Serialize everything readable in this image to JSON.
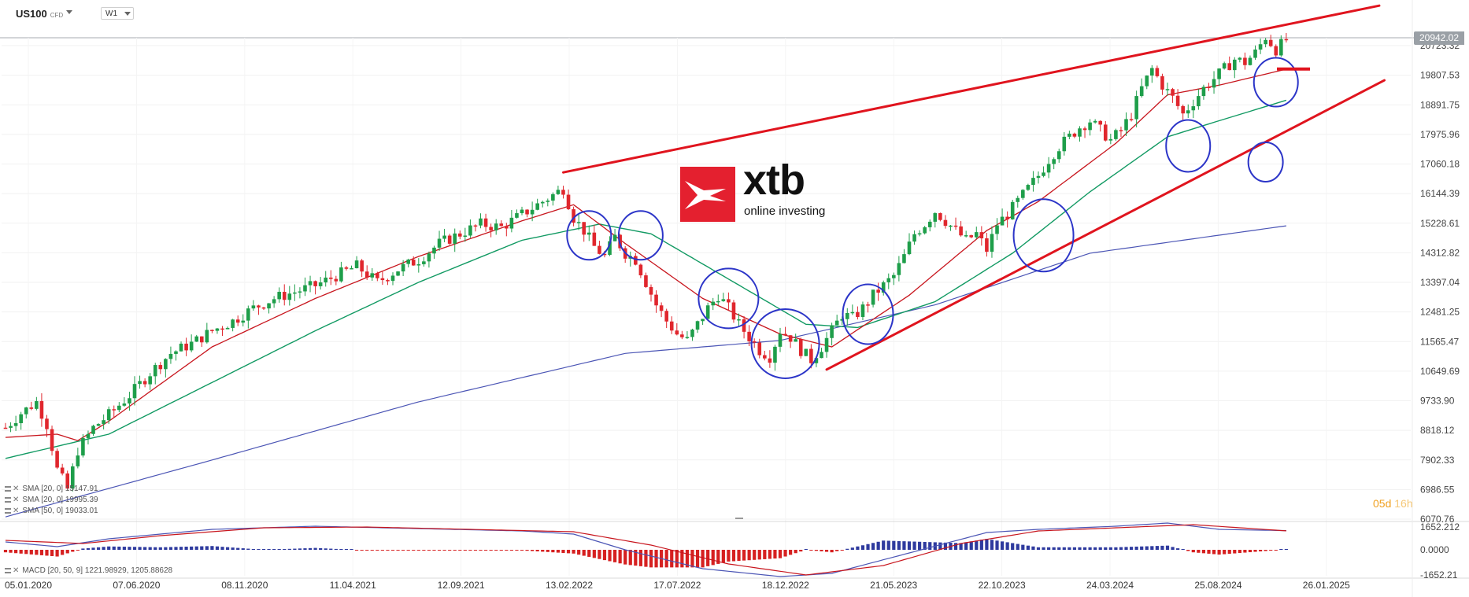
{
  "header": {
    "symbol": "US100",
    "symbol_type": "CFD",
    "timeframe": "W1"
  },
  "logo": {
    "brand": "xtb",
    "tagline": "online investing"
  },
  "current_price": "20942.02",
  "countdown": {
    "days": "05d",
    "hours": "16h"
  },
  "price_axis": [
    "20723.32",
    "19807.53",
    "18891.75",
    "17975.96",
    "17060.18",
    "16144.39",
    "15228.61",
    "14312.82",
    "13397.04",
    "12481.25",
    "11565.47",
    "10649.69",
    "9733.90",
    "8818.12",
    "7902.33",
    "6986.55",
    "6070.76"
  ],
  "macd_axis": [
    "1652.212",
    "0.0000",
    "-1652.21"
  ],
  "date_axis": [
    "05.01.2020",
    "07.06.2020",
    "08.11.2020",
    "11.04.2021",
    "12.09.2021",
    "13.02.2022",
    "17.07.2022",
    "18.12.2022",
    "21.05.2023",
    "22.10.2023",
    "24.03.2024",
    "25.08.2024",
    "26.01.2025"
  ],
  "legends": [
    {
      "text": "SMA  [20, 0]  15147.91"
    },
    {
      "text": "SMA  [20, 0]  19995.39"
    },
    {
      "text": "SMA  [50, 0]  19033.01"
    },
    {
      "text": "MACD  [20, 50, 9]  1221.98929,  1205.88628"
    }
  ],
  "colors": {
    "bull": "#1e9e4a",
    "bear": "#e0262d",
    "sma_fast": "#c8161e",
    "sma_mid": "#129a63",
    "sma_slow": "#4b55b5",
    "trend": "#e0141e",
    "circle": "#2c35c8",
    "macd_hist_pos": "#2e3a9e",
    "macd_hist_neg": "#d62020"
  },
  "chart_data": {
    "type": "candlestick",
    "symbol": "US100",
    "interval": "W1",
    "ylim": [
      6070.76,
      20723.32
    ],
    "x_ticks": [
      "05.01.2020",
      "07.06.2020",
      "08.11.2020",
      "11.04.2021",
      "12.09.2021",
      "13.02.2022",
      "17.07.2022",
      "18.12.2022",
      "21.05.2023",
      "22.10.2023",
      "24.03.2024",
      "25.08.2024",
      "26.01.2025"
    ],
    "close_path": [
      [
        0,
        8900
      ],
      [
        3,
        9350
      ],
      [
        6,
        9700
      ],
      [
        8,
        9000
      ],
      [
        10,
        7600
      ],
      [
        12,
        7000
      ],
      [
        14,
        8200
      ],
      [
        17,
        8900
      ],
      [
        20,
        9300
      ],
      [
        24,
        9900
      ],
      [
        28,
        10600
      ],
      [
        32,
        11200
      ],
      [
        36,
        11500
      ],
      [
        40,
        11900
      ],
      [
        44,
        12200
      ],
      [
        48,
        12600
      ],
      [
        52,
        12900
      ],
      [
        56,
        13100
      ],
      [
        60,
        13300
      ],
      [
        64,
        13600
      ],
      [
        68,
        13900
      ],
      [
        72,
        13400
      ],
      [
        76,
        13800
      ],
      [
        80,
        14100
      ],
      [
        84,
        14600
      ],
      [
        88,
        14900
      ],
      [
        92,
        15200
      ],
      [
        96,
        15100
      ],
      [
        100,
        15500
      ],
      [
        104,
        15900
      ],
      [
        108,
        16300
      ],
      [
        110,
        15400
      ],
      [
        112,
        15000
      ],
      [
        114,
        14500
      ],
      [
        116,
        14200
      ],
      [
        118,
        14800
      ],
      [
        120,
        14300
      ],
      [
        122,
        14100
      ],
      [
        124,
        13400
      ],
      [
        126,
        12700
      ],
      [
        128,
        12200
      ],
      [
        130,
        11800
      ],
      [
        132,
        11600
      ],
      [
        134,
        12100
      ],
      [
        136,
        12600
      ],
      [
        138,
        13000
      ],
      [
        140,
        12600
      ],
      [
        142,
        12100
      ],
      [
        144,
        11700
      ],
      [
        146,
        11300
      ],
      [
        148,
        11100
      ],
      [
        150,
        11900
      ],
      [
        152,
        11700
      ],
      [
        154,
        11300
      ],
      [
        156,
        11000
      ],
      [
        158,
        11400
      ],
      [
        160,
        11900
      ],
      [
        162,
        12400
      ],
      [
        164,
        12300
      ],
      [
        166,
        12600
      ],
      [
        168,
        13000
      ],
      [
        170,
        13300
      ],
      [
        172,
        13600
      ],
      [
        174,
        14200
      ],
      [
        176,
        14900
      ],
      [
        178,
        15200
      ],
      [
        180,
        15600
      ],
      [
        182,
        15300
      ],
      [
        184,
        15000
      ],
      [
        186,
        14700
      ],
      [
        188,
        14900
      ],
      [
        190,
        14400
      ],
      [
        192,
        15200
      ],
      [
        194,
        15500
      ],
      [
        196,
        15900
      ],
      [
        198,
        16300
      ],
      [
        200,
        16700
      ],
      [
        202,
        17200
      ],
      [
        204,
        17600
      ],
      [
        206,
        17900
      ],
      [
        208,
        18200
      ],
      [
        210,
        18400
      ],
      [
        212,
        18100
      ],
      [
        214,
        17800
      ],
      [
        216,
        18100
      ],
      [
        218,
        18600
      ],
      [
        220,
        19400
      ],
      [
        222,
        20000
      ],
      [
        224,
        19500
      ],
      [
        226,
        19100
      ],
      [
        228,
        18600
      ],
      [
        230,
        19000
      ],
      [
        232,
        19400
      ],
      [
        234,
        19700
      ],
      [
        236,
        20000
      ],
      [
        238,
        20300
      ],
      [
        240,
        20200
      ],
      [
        242,
        20500
      ],
      [
        244,
        21000
      ],
      [
        246,
        20600
      ],
      [
        248,
        20900
      ]
    ],
    "sma_slow_path": [
      [
        0,
        6140
      ],
      [
        40,
        7900
      ],
      [
        80,
        9700
      ],
      [
        120,
        11200
      ],
      [
        150,
        11600
      ],
      [
        180,
        12700
      ],
      [
        210,
        14300
      ],
      [
        248,
        15147.91
      ]
    ],
    "sma_mid_path": [
      [
        0,
        7950
      ],
      [
        20,
        8700
      ],
      [
        40,
        10300
      ],
      [
        60,
        11900
      ],
      [
        80,
        13400
      ],
      [
        100,
        14700
      ],
      [
        115,
        15200
      ],
      [
        125,
        14900
      ],
      [
        140,
        13500
      ],
      [
        155,
        12100
      ],
      [
        165,
        12000
      ],
      [
        180,
        12800
      ],
      [
        195,
        14300
      ],
      [
        210,
        16200
      ],
      [
        225,
        17900
      ],
      [
        235,
        18400
      ],
      [
        248,
        19033.01
      ]
    ],
    "sma_fast_path": [
      [
        0,
        8600
      ],
      [
        10,
        8700
      ],
      [
        14,
        8500
      ],
      [
        20,
        9100
      ],
      [
        40,
        11400
      ],
      [
        60,
        12900
      ],
      [
        80,
        14200
      ],
      [
        100,
        15300
      ],
      [
        110,
        15800
      ],
      [
        120,
        14600
      ],
      [
        135,
        12900
      ],
      [
        150,
        11800
      ],
      [
        160,
        11400
      ],
      [
        175,
        13000
      ],
      [
        190,
        15000
      ],
      [
        200,
        15900
      ],
      [
        215,
        17700
      ],
      [
        225,
        19200
      ],
      [
        235,
        19500
      ],
      [
        248,
        19995.39
      ]
    ],
    "macd": {
      "ylim": [
        -1652.21,
        1652.212
      ],
      "macd_path": [
        [
          0,
          500
        ],
        [
          10,
          200
        ],
        [
          20,
          700
        ],
        [
          40,
          1300
        ],
        [
          60,
          1500
        ],
        [
          80,
          1350
        ],
        [
          100,
          1200
        ],
        [
          110,
          1000
        ],
        [
          120,
          0
        ],
        [
          135,
          -1200
        ],
        [
          150,
          -1700
        ],
        [
          160,
          -1500
        ],
        [
          175,
          -200
        ],
        [
          190,
          1100
        ],
        [
          200,
          1300
        ],
        [
          215,
          1500
        ],
        [
          225,
          1700
        ],
        [
          235,
          1300
        ],
        [
          248,
          1221.98929
        ]
      ],
      "signal_path": [
        [
          0,
          600
        ],
        [
          15,
          400
        ],
        [
          30,
          900
        ],
        [
          50,
          1400
        ],
        [
          70,
          1450
        ],
        [
          90,
          1300
        ],
        [
          110,
          1150
        ],
        [
          125,
          300
        ],
        [
          140,
          -900
        ],
        [
          155,
          -1600
        ],
        [
          170,
          -1000
        ],
        [
          185,
          400
        ],
        [
          200,
          1200
        ],
        [
          215,
          1400
        ],
        [
          230,
          1600
        ],
        [
          248,
          1205.88628
        ]
      ]
    },
    "trendlines": [
      {
        "from": [
          108,
          16800
        ],
        "to": [
          266,
          21960
        ]
      },
      {
        "from": [
          159,
          10700
        ],
        "to": [
          267,
          19650
        ]
      }
    ],
    "annotation_circles": [
      {
        "x": 113,
        "y": 14850
      },
      {
        "x": 123,
        "y": 14850
      },
      {
        "x": 140,
        "y": 12900
      },
      {
        "x": 151,
        "y": 11500
      },
      {
        "x": 167,
        "y": 12410
      },
      {
        "x": 201,
        "y": 14850
      },
      {
        "x": 229,
        "y": 17620
      },
      {
        "x": 246,
        "y": 19590
      },
      {
        "x": 244,
        "y": 17120
      }
    ],
    "target_marker": {
      "price": 20000
    }
  }
}
